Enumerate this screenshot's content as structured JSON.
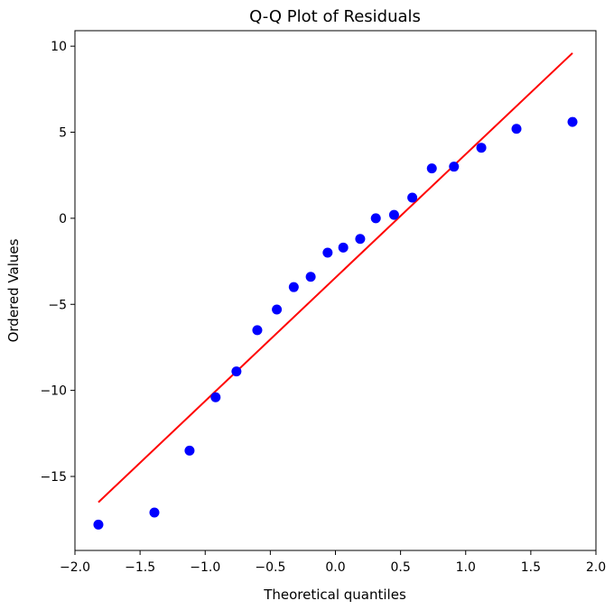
{
  "chart_data": {
    "type": "scatter",
    "title": "Q-Q Plot of Residuals",
    "xlabel": "Theoretical quantiles",
    "ylabel": "Ordered Values",
    "xlim": [
      -2.0,
      2.0
    ],
    "ylim": [
      -19.3,
      10.9
    ],
    "x_ticks": [
      -2.0,
      -1.5,
      -1.0,
      -0.5,
      0.0,
      0.5,
      1.0,
      1.5,
      2.0
    ],
    "x_tick_labels": [
      "−2.0",
      "−1.5",
      "−1.0",
      "−0.5",
      "0.0",
      "0.5",
      "1.0",
      "1.5",
      "2.0"
    ],
    "y_ticks": [
      10,
      5,
      0,
      -5,
      -10,
      -15
    ],
    "y_tick_labels": [
      "10",
      "5",
      "0",
      "−5",
      "−10",
      "−15"
    ],
    "grid": false,
    "series": [
      {
        "kind": "points",
        "color": "#0000ff",
        "points": [
          {
            "x": -1.82,
            "y": -17.8
          },
          {
            "x": -1.39,
            "y": -17.1
          },
          {
            "x": -1.12,
            "y": -13.5
          },
          {
            "x": -0.92,
            "y": -10.4
          },
          {
            "x": -0.76,
            "y": -8.9
          },
          {
            "x": -0.6,
            "y": -6.5
          },
          {
            "x": -0.45,
            "y": -5.3
          },
          {
            "x": -0.32,
            "y": -4.0
          },
          {
            "x": -0.19,
            "y": -3.4
          },
          {
            "x": -0.06,
            "y": -2.0
          },
          {
            "x": 0.06,
            "y": -1.7
          },
          {
            "x": 0.19,
            "y": -1.2
          },
          {
            "x": 0.31,
            "y": 0.0
          },
          {
            "x": 0.45,
            "y": 0.2
          },
          {
            "x": 0.59,
            "y": 1.2
          },
          {
            "x": 0.74,
            "y": 2.9
          },
          {
            "x": 0.91,
            "y": 3.0
          },
          {
            "x": 1.12,
            "y": 4.1
          },
          {
            "x": 1.39,
            "y": 5.2
          },
          {
            "x": 1.82,
            "y": 5.6
          }
        ]
      },
      {
        "kind": "reference-line",
        "color": "#ff0000",
        "x": [
          -1.82,
          1.82
        ],
        "y": [
          -16.5,
          9.6
        ]
      }
    ]
  }
}
